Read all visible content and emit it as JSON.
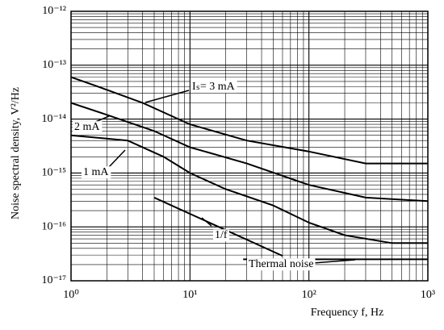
{
  "chart_data": {
    "type": "line",
    "log_x": true,
    "log_y": true,
    "grid": true,
    "minor_grid": true,
    "xlabel": "Frequency  f, Hz",
    "ylabel": "Noise spectral density, V²/Hz",
    "xlim": [
      1,
      1000
    ],
    "ylim": [
      1e-17,
      1e-12
    ],
    "xticks": [
      {
        "value": 1,
        "label": "10⁰"
      },
      {
        "value": 10,
        "label": "10¹"
      },
      {
        "value": 100,
        "label": "10²"
      },
      {
        "value": 1000,
        "label": "10³"
      }
    ],
    "yticks": [
      {
        "value": 1e-17,
        "label": "10⁻¹⁷"
      },
      {
        "value": 1e-16,
        "label": "10⁻¹⁶"
      },
      {
        "value": 1e-15,
        "label": "10⁻¹⁵"
      },
      {
        "value": 1e-14,
        "label": "10⁻¹⁴"
      },
      {
        "value": 1e-13,
        "label": "10⁻¹³"
      },
      {
        "value": 1e-12,
        "label": "10⁻¹²"
      }
    ],
    "series": [
      {
        "name": "Iₛ= 3 mA",
        "color": "#000000",
        "x": [
          1,
          2,
          4,
          10,
          30,
          100,
          300,
          1000
        ],
        "values": [
          6e-14,
          3.5e-14,
          2e-14,
          8e-15,
          4e-15,
          2.5e-15,
          1.5e-15,
          1.5e-15
        ]
      },
      {
        "name": "2 mA",
        "color": "#000000",
        "x": [
          1,
          2,
          5,
          10,
          30,
          100,
          300,
          1000
        ],
        "values": [
          2e-14,
          1.2e-14,
          6e-15,
          3e-15,
          1.5e-15,
          6e-16,
          3.5e-16,
          3e-16
        ]
      },
      {
        "name": "1 mA",
        "color": "#000000",
        "x": [
          1,
          3,
          6,
          10,
          20,
          50,
          100,
          200,
          500,
          1000
        ],
        "values": [
          5e-15,
          4e-15,
          2e-15,
          1e-15,
          5e-16,
          2.5e-16,
          1.2e-16,
          7e-17,
          5e-17,
          5e-17
        ]
      },
      {
        "name": "1/f",
        "color": "#000000",
        "x": [
          5,
          60
        ],
        "values": [
          3.5e-16,
          2.9e-17
        ]
      },
      {
        "name": "Thermal noise",
        "color": "#000000",
        "x": [
          28,
          1000
        ],
        "values": [
          2.5e-17,
          2.5e-17
        ]
      }
    ]
  }
}
